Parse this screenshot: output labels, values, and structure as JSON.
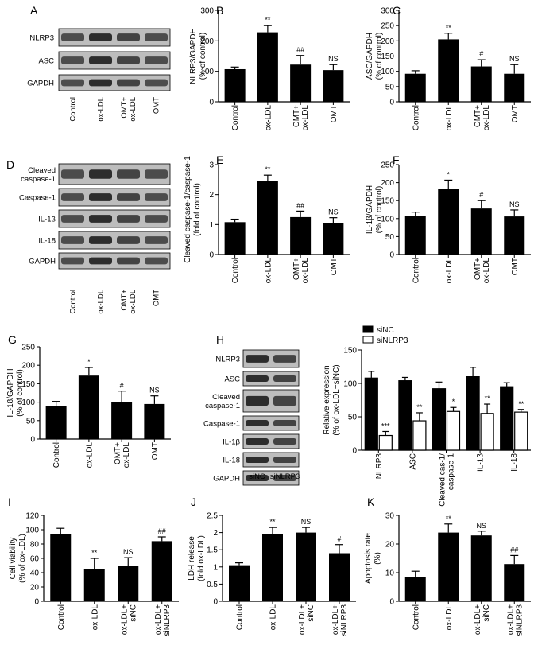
{
  "figure": {
    "panel_labels": [
      "A",
      "B",
      "C",
      "D",
      "E",
      "F",
      "G",
      "H",
      "I",
      "J",
      "K"
    ]
  },
  "blots": {
    "A": {
      "rows": [
        "NLRP3",
        "ASC",
        "GAPDH"
      ],
      "lanes": [
        "Control",
        "ox-LDL",
        "OMT+\nox-LDL",
        "OMT"
      ]
    },
    "D": {
      "rows": [
        "Cleaved\ncaspase-1",
        "Caspase-1",
        "IL-1β",
        "IL-18",
        "GAPDH"
      ],
      "lanes": [
        "Control",
        "ox-LDL",
        "OMT+\nox-LDL",
        "OMT"
      ]
    },
    "H": {
      "rows": [
        "NLRP3",
        "ASC",
        "Cleaved\ncaspase-1",
        "Caspase-1",
        "IL-1β",
        "IL-18",
        "GAPDH"
      ],
      "lanes": [
        "siNC",
        "siNLRP3"
      ]
    }
  },
  "colors": {
    "bar_fill": "#000000",
    "bar_open": "#ffffff",
    "axis": "#000000"
  },
  "chart_data": [
    {
      "id": "B",
      "type": "bar",
      "categories": [
        "Control",
        "ox-LDL",
        "OMT+\nox-LDL",
        "OMT"
      ],
      "values": [
        107,
        228,
        122,
        104
      ],
      "errors": [
        7,
        22,
        30,
        18
      ],
      "annotations": [
        "",
        "**",
        "##",
        "NS"
      ],
      "ylabel": "NLRP3/GAPDH\n(% of control)",
      "ylim": [
        0,
        300
      ],
      "yticks": [
        0,
        100,
        200,
        300
      ]
    },
    {
      "id": "C",
      "type": "bar",
      "categories": [
        "Control",
        "ox-LDL",
        "OMT+\nox-LDL",
        "OMT"
      ],
      "values": [
        92,
        205,
        116,
        92
      ],
      "errors": [
        10,
        20,
        22,
        30
      ],
      "annotations": [
        "",
        "**",
        "#",
        "NS"
      ],
      "ylabel": "ASC/GAPDH\n(% of control)",
      "ylim": [
        0,
        300
      ],
      "yticks": [
        0,
        50,
        100,
        150,
        200,
        250,
        300
      ]
    },
    {
      "id": "E",
      "type": "bar",
      "categories": [
        "Control",
        "ox-LDL",
        "OMT+\nox-LDL",
        "OMT"
      ],
      "values": [
        1.08,
        2.45,
        1.25,
        1.05
      ],
      "errors": [
        0.1,
        0.2,
        0.2,
        0.18
      ],
      "annotations": [
        "",
        "**",
        "##",
        "NS"
      ],
      "ylabel": "Cleaved caspase-1/caspase-1\n(fold of control)",
      "ylim": [
        0,
        3
      ],
      "yticks": [
        0,
        1,
        2,
        3
      ]
    },
    {
      "id": "F",
      "type": "bar",
      "categories": [
        "Control",
        "ox-LDL",
        "OMT+\nox-LDL",
        "OMT"
      ],
      "values": [
        108,
        182,
        128,
        106
      ],
      "errors": [
        10,
        25,
        22,
        18
      ],
      "annotations": [
        "",
        "*",
        "#",
        "NS"
      ],
      "ylabel": "IL-1β/GAPDH\n(% of control)",
      "ylim": [
        0,
        250
      ],
      "yticks": [
        0,
        50,
        100,
        150,
        200,
        250
      ]
    },
    {
      "id": "G",
      "type": "bar",
      "categories": [
        "Control",
        "ox-LDL",
        "OMT+\nox-LDL",
        "OMT"
      ],
      "values": [
        90,
        172,
        100,
        95
      ],
      "errors": [
        12,
        22,
        30,
        22
      ],
      "annotations": [
        "",
        "*",
        "#",
        "NS"
      ],
      "ylabel": "IL-18/GAPDH\n(% of control)",
      "ylim": [
        0,
        250
      ],
      "yticks": [
        0,
        50,
        100,
        150,
        200,
        250
      ]
    },
    {
      "id": "H",
      "type": "bar",
      "categories": [
        "NLRP3",
        "ASC",
        "Cleaved cas-1/\ncaspase-1",
        "IL-1β",
        "IL-18"
      ],
      "series": [
        {
          "name": "siNC",
          "values": [
            108,
            104,
            92,
            110,
            95
          ],
          "errors": [
            10,
            5,
            10,
            14,
            6
          ]
        },
        {
          "name": "siNLRP3",
          "values": [
            22,
            44,
            58,
            55,
            57
          ],
          "errors": [
            6,
            12,
            6,
            14,
            4
          ]
        }
      ],
      "annotations": [
        "***",
        "**",
        "*",
        "**",
        "**"
      ],
      "ylabel": "Relative expression\n(% of ox-LDL+siNC)",
      "ylim": [
        0,
        150
      ],
      "yticks": [
        0,
        50,
        100,
        150
      ],
      "legend": "top-left"
    },
    {
      "id": "I",
      "type": "bar",
      "categories": [
        "Control",
        "ox-LDL",
        "ox-LDL+\nsiNC",
        "ox-LDL+\nsiNLRP3"
      ],
      "values": [
        94,
        45,
        49,
        84
      ],
      "errors": [
        8,
        15,
        12,
        6
      ],
      "annotations": [
        "",
        "**",
        "NS",
        "##"
      ],
      "ylabel": "Cell viability\n(% of ox-LDL)",
      "ylim": [
        0,
        120
      ],
      "yticks": [
        0,
        20,
        40,
        60,
        80,
        100,
        120
      ]
    },
    {
      "id": "J",
      "type": "bar",
      "categories": [
        "Control",
        "ox-LDL",
        "ox-LDL+\nsiNC",
        "ox-LDL+\nsiNLRP3"
      ],
      "values": [
        1.05,
        1.95,
        2.0,
        1.4
      ],
      "errors": [
        0.07,
        0.2,
        0.15,
        0.25
      ],
      "annotations": [
        "",
        "**",
        "NS",
        "#"
      ],
      "ylabel": "LDH release\n(fold ox-LDL)",
      "ylim": [
        0,
        2.5
      ],
      "yticks": [
        0,
        0.5,
        1.0,
        1.5,
        2.0,
        2.5
      ]
    },
    {
      "id": "K",
      "type": "bar",
      "categories": [
        "Control",
        "ox-LDL",
        "ox-LDL+\nsiNC",
        "ox-LDL+\nsiNLRP3"
      ],
      "values": [
        8.5,
        24,
        23,
        13
      ],
      "errors": [
        2,
        3,
        1.5,
        3
      ],
      "annotations": [
        "",
        "**",
        "NS",
        "##"
      ],
      "ylabel": "Apoptosis rate\n(%)",
      "ylim": [
        0,
        30
      ],
      "yticks": [
        0,
        10,
        20,
        30
      ]
    }
  ]
}
